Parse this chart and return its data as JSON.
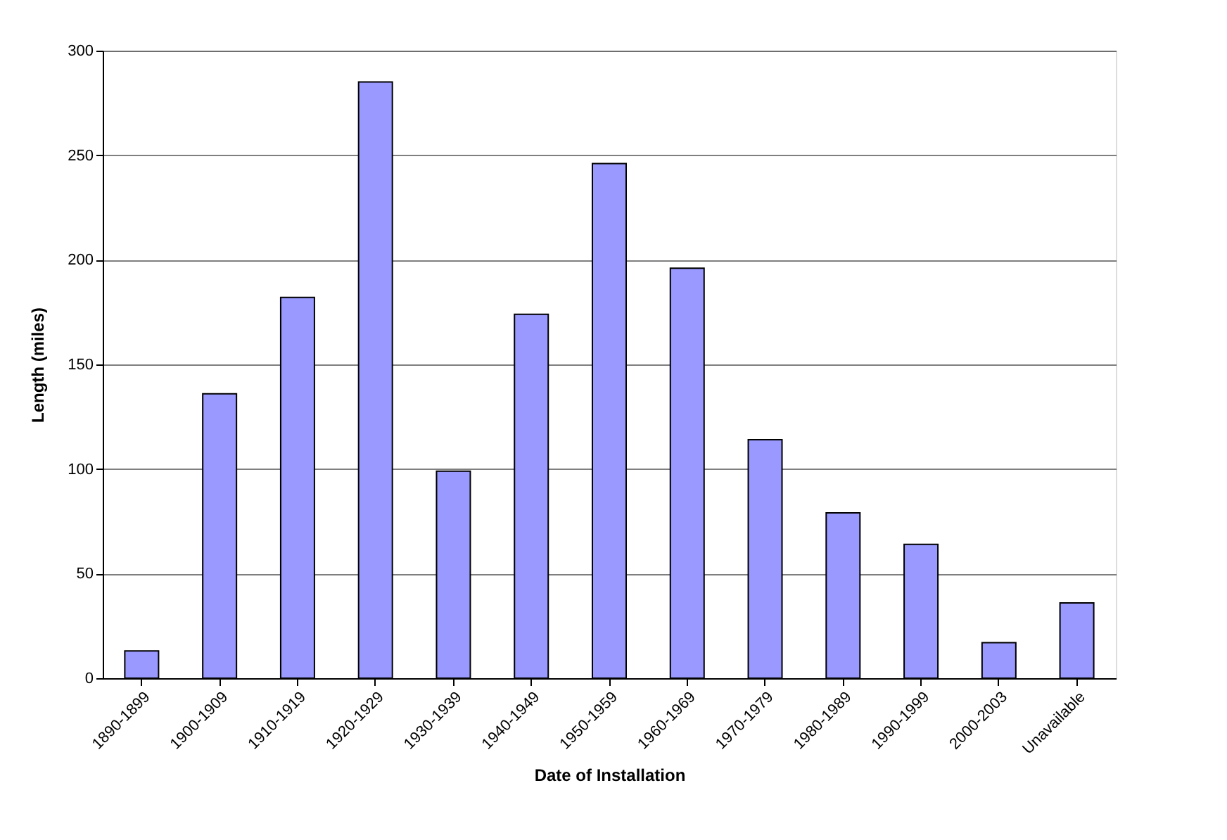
{
  "chart_data": {
    "type": "bar",
    "xlabel": "Date of Installation",
    "ylabel": "Length (miles)",
    "categories": [
      "1890-1899",
      "1900-1909",
      "1910-1919",
      "1920-1929",
      "1930-1939",
      "1940-1949",
      "1950-1959",
      "1960-1969",
      "1970-1979",
      "1980-1989",
      "1990-1999",
      "2000-2003",
      "Unavailable"
    ],
    "values": [
      13,
      136,
      182,
      285,
      99,
      174,
      246,
      196,
      114,
      79,
      64,
      17,
      36
    ],
    "color": "#9999ff",
    "ylim": [
      0,
      300
    ],
    "yticks": [
      0,
      50,
      100,
      150,
      200,
      250,
      300
    ],
    "grid": "y"
  }
}
